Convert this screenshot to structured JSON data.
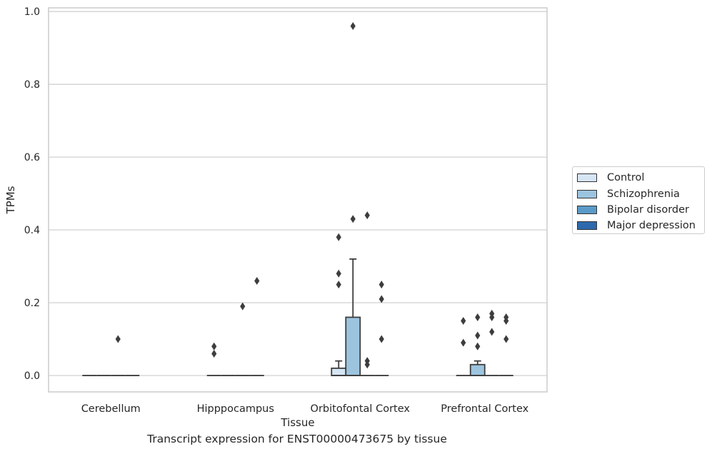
{
  "chart_data": {
    "type": "box",
    "caption": "Transcript expression for ENST00000473675 by tissue",
    "xlabel": "Tissue",
    "ylabel": "TPMs",
    "ylim": [
      -0.045,
      1.01
    ],
    "yticks": [
      "0.0",
      "0.2",
      "0.4",
      "0.6",
      "0.8",
      "1.0"
    ],
    "grid": "horizontal",
    "legend_position": "right",
    "categories": [
      "Cerebellum",
      "Hipppocampus",
      "Orbitofontal Cortex",
      "Prefrontal Cortex"
    ],
    "series": [
      {
        "name": "Control",
        "color": "#d6e5f3",
        "boxes": [
          {
            "q1": 0,
            "median": 0,
            "q3": 0,
            "whisker_low": 0,
            "whisker_high": 0,
            "outliers": []
          },
          {
            "q1": 0,
            "median": 0,
            "q3": 0,
            "whisker_low": 0,
            "whisker_high": 0,
            "outliers": [
              0.06,
              0.08
            ]
          },
          {
            "q1": 0,
            "median": 0,
            "q3": 0.02,
            "whisker_low": 0,
            "whisker_high": 0.04,
            "outliers": [
              0.25,
              0.28,
              0.38
            ]
          },
          {
            "q1": 0,
            "median": 0,
            "q3": 0,
            "whisker_low": 0,
            "whisker_high": 0,
            "outliers": [
              0.09,
              0.15
            ]
          }
        ]
      },
      {
        "name": "Schizophrenia",
        "color": "#9cc4df",
        "boxes": [
          {
            "q1": 0,
            "median": 0,
            "q3": 0,
            "whisker_low": 0,
            "whisker_high": 0,
            "outliers": []
          },
          {
            "q1": 0,
            "median": 0,
            "q3": 0,
            "whisker_low": 0,
            "whisker_high": 0,
            "outliers": []
          },
          {
            "q1": 0,
            "median": 0,
            "q3": 0.16,
            "whisker_low": 0,
            "whisker_high": 0.32,
            "outliers": [
              0.43,
              0.96
            ]
          },
          {
            "q1": 0,
            "median": 0,
            "q3": 0.03,
            "whisker_low": 0,
            "whisker_high": 0.04,
            "outliers": [
              0.08,
              0.11,
              0.16
            ]
          }
        ]
      },
      {
        "name": "Bipolar disorder",
        "color": "#5a9ac8",
        "boxes": [
          {
            "q1": 0,
            "median": 0,
            "q3": 0,
            "whisker_low": 0,
            "whisker_high": 0,
            "outliers": [
              0.1
            ]
          },
          {
            "q1": 0,
            "median": 0,
            "q3": 0,
            "whisker_low": 0,
            "whisker_high": 0,
            "outliers": [
              0.19
            ]
          },
          {
            "q1": 0,
            "median": 0,
            "q3": 0,
            "whisker_low": 0,
            "whisker_high": 0,
            "outliers": [
              0.03,
              0.04,
              0.44
            ]
          },
          {
            "q1": 0,
            "median": 0,
            "q3": 0,
            "whisker_low": 0,
            "whisker_high": 0,
            "outliers": [
              0.12,
              0.16,
              0.17
            ]
          }
        ]
      },
      {
        "name": "Major depression",
        "color": "#2d6aad",
        "boxes": [
          {
            "q1": 0,
            "median": 0,
            "q3": 0,
            "whisker_low": 0,
            "whisker_high": 0,
            "outliers": []
          },
          {
            "q1": 0,
            "median": 0,
            "q3": 0,
            "whisker_low": 0,
            "whisker_high": 0,
            "outliers": [
              0.26
            ]
          },
          {
            "q1": 0,
            "median": 0,
            "q3": 0,
            "whisker_low": 0,
            "whisker_high": 0,
            "outliers": [
              0.1,
              0.21,
              0.25
            ]
          },
          {
            "q1": 0,
            "median": 0,
            "q3": 0,
            "whisker_low": 0,
            "whisker_high": 0,
            "outliers": [
              0.1,
              0.15,
              0.16
            ]
          }
        ]
      }
    ]
  }
}
